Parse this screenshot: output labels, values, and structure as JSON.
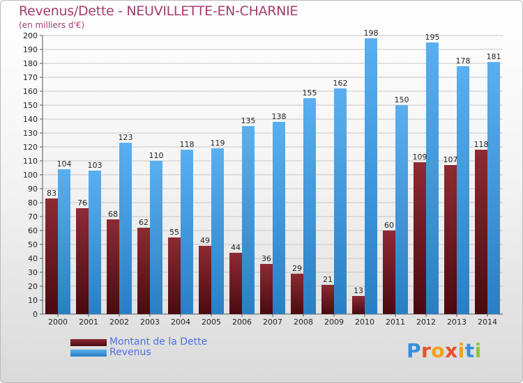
{
  "title": "Revenus/Dette - NEUVILLETTE-EN-CHARNIE",
  "subtitle": "(en milliers d'€)",
  "logo": {
    "text": "Proxiti",
    "colors": [
      "#3b8ed9",
      "#e94f2a",
      "#f3a21b",
      "#e94f2a",
      "#f3a21b",
      "#3b8ed9",
      "#8cc63e"
    ]
  },
  "legend": {
    "position": "bottom-left"
  },
  "colors": {
    "dette": "#6d1620",
    "revenus": "#3794dd",
    "grid": "#c6c6c6",
    "title": "#a43d6e",
    "legend_text": "#4f6fe0"
  },
  "chart_data": {
    "type": "bar",
    "categories": [
      "2000",
      "2001",
      "2002",
      "2003",
      "2004",
      "2005",
      "2006",
      "2007",
      "2008",
      "2009",
      "2010",
      "2011",
      "2012",
      "2013",
      "2014"
    ],
    "series": [
      {
        "name": "Montant de la Dette",
        "values": [
          83,
          76,
          68,
          62,
          55,
          49,
          44,
          36,
          29,
          21,
          13,
          60,
          109,
          107,
          118
        ]
      },
      {
        "name": "Revenus",
        "values": [
          104,
          103,
          123,
          110,
          118,
          119,
          135,
          138,
          155,
          162,
          198,
          150,
          195,
          178,
          181
        ]
      }
    ],
    "title": "Revenus/Dette - NEUVILLETTE-EN-CHARNIE",
    "ylabel": "(en milliers d'€)",
    "ylim": [
      0,
      200
    ],
    "ytick_step": 10,
    "grid": true
  }
}
